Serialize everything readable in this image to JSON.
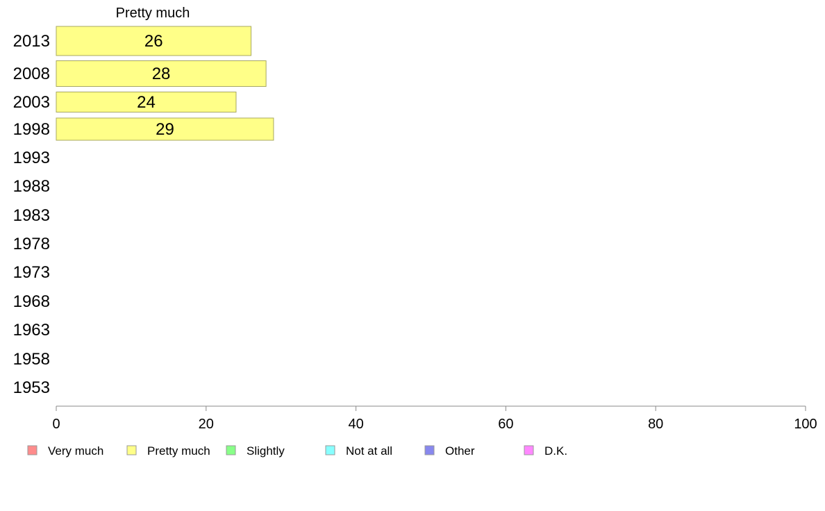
{
  "chart_data": {
    "type": "bar",
    "orientation": "horizontal",
    "title": "Pretty much",
    "categories": [
      "2013",
      "2008",
      "2003",
      "1998",
      "1993",
      "1988",
      "1983",
      "1978",
      "1973",
      "1968",
      "1963",
      "1958",
      "1953"
    ],
    "series": [
      {
        "name": "Pretty much",
        "values": [
          26,
          28,
          24,
          29,
          null,
          null,
          null,
          null,
          null,
          null,
          null,
          null,
          null
        ]
      }
    ],
    "value_labels": [
      "26",
      "28",
      "24",
      "29"
    ],
    "xlim": [
      0,
      100
    ],
    "x_ticks": [
      0,
      20,
      40,
      60,
      80,
      100
    ],
    "grid": false,
    "legend_position": "bottom",
    "legend": [
      {
        "label": "Very much",
        "color": "#ff8c8c"
      },
      {
        "label": "Pretty much",
        "color": "#ffff88"
      },
      {
        "label": "Slightly",
        "color": "#88ff88"
      },
      {
        "label": "Not at all",
        "color": "#88ffff"
      },
      {
        "label": "Other",
        "color": "#8888ee"
      },
      {
        "label": "D.K.",
        "color": "#ff88ff"
      }
    ],
    "bar_color": "#ffff88",
    "bar_edge_color": "#a8a860",
    "axis_color": "#888888"
  }
}
